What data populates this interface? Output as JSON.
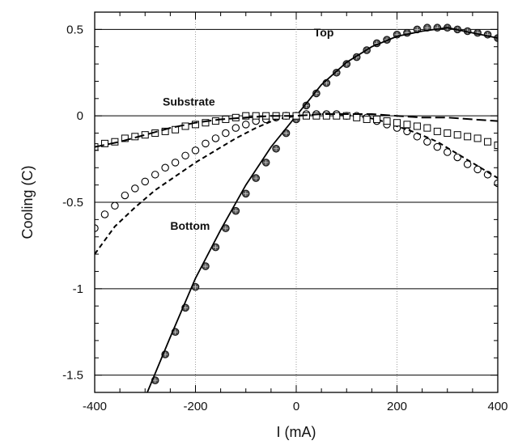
{
  "chart_data": {
    "type": "scatter",
    "title": "",
    "xlabel": "I (mA)",
    "ylabel": "Cooling (C)",
    "xlim": [
      -400,
      400
    ],
    "ylim": [
      -1.6,
      0.6
    ],
    "x_ticks": [
      -400,
      -200,
      0,
      200,
      400
    ],
    "x_tick_labels": [
      "-400",
      "-200",
      "0",
      "200",
      "400"
    ],
    "y_ticks": [
      0.5,
      0,
      -0.5,
      -1,
      -1.5
    ],
    "y_tick_labels": [
      "0.5",
      "0",
      "-0.5",
      "-1",
      "-1.5"
    ],
    "grid": {
      "horizontal_solid_at": [
        0.5,
        0,
        -0.5,
        -1,
        -1.5
      ],
      "vertical_dotted_at": [
        -200,
        0,
        200
      ]
    },
    "annotations": [
      {
        "text": "Top",
        "x": 35,
        "y": 0.46
      },
      {
        "text": "Substrate",
        "x": -265,
        "y": 0.06
      },
      {
        "text": "Bottom",
        "x": -250,
        "y": -0.66
      }
    ],
    "series": [
      {
        "marker": "filled-circle",
        "color": "#444444",
        "points": [
          [
            -280,
            -1.53
          ],
          [
            -260,
            -1.38
          ],
          [
            -240,
            -1.25
          ],
          [
            -220,
            -1.11
          ],
          [
            -200,
            -0.99
          ],
          [
            -180,
            -0.87
          ],
          [
            -160,
            -0.76
          ],
          [
            -140,
            -0.65
          ],
          [
            -120,
            -0.55
          ],
          [
            -100,
            -0.45
          ],
          [
            -80,
            -0.36
          ],
          [
            -60,
            -0.27
          ],
          [
            -40,
            -0.19
          ],
          [
            -20,
            -0.1
          ],
          [
            0,
            -0.02
          ],
          [
            20,
            0.06
          ],
          [
            40,
            0.13
          ],
          [
            60,
            0.19
          ],
          [
            80,
            0.25
          ],
          [
            100,
            0.3
          ],
          [
            120,
            0.34
          ],
          [
            140,
            0.38
          ],
          [
            160,
            0.42
          ],
          [
            180,
            0.44
          ],
          [
            200,
            0.47
          ],
          [
            220,
            0.48
          ],
          [
            240,
            0.5
          ],
          [
            260,
            0.51
          ],
          [
            280,
            0.51
          ],
          [
            300,
            0.51
          ],
          [
            320,
            0.5
          ],
          [
            340,
            0.49
          ],
          [
            360,
            0.48
          ],
          [
            380,
            0.47
          ],
          [
            400,
            0.45
          ]
        ]
      },
      {
        "marker": "solid-line",
        "color": "#000000",
        "points": [
          [
            -300,
            -1.63
          ],
          [
            -250,
            -1.28
          ],
          [
            -200,
            -0.94
          ],
          [
            -150,
            -0.66
          ],
          [
            -100,
            -0.4
          ],
          [
            -50,
            -0.18
          ],
          [
            0,
            0.0
          ],
          [
            50,
            0.18
          ],
          [
            100,
            0.31
          ],
          [
            150,
            0.4
          ],
          [
            200,
            0.46
          ],
          [
            250,
            0.49
          ],
          [
            300,
            0.51
          ],
          [
            350,
            0.48
          ],
          [
            400,
            0.45
          ]
        ]
      },
      {
        "marker": "open-circle",
        "color": "#000000",
        "points": [
          [
            -400,
            -0.65
          ],
          [
            -380,
            -0.57
          ],
          [
            -360,
            -0.52
          ],
          [
            -340,
            -0.46
          ],
          [
            -320,
            -0.42
          ],
          [
            -300,
            -0.38
          ],
          [
            -280,
            -0.34
          ],
          [
            -260,
            -0.3
          ],
          [
            -240,
            -0.27
          ],
          [
            -220,
            -0.23
          ],
          [
            -200,
            -0.2
          ],
          [
            -180,
            -0.16
          ],
          [
            -160,
            -0.13
          ],
          [
            -140,
            -0.1
          ],
          [
            -120,
            -0.07
          ],
          [
            -100,
            -0.05
          ],
          [
            -80,
            -0.03
          ],
          [
            -60,
            -0.02
          ],
          [
            -40,
            -0.01
          ],
          [
            -20,
            0.0
          ],
          [
            0,
            0.0
          ],
          [
            20,
            0.01
          ],
          [
            40,
            0.01
          ],
          [
            60,
            0.01
          ],
          [
            80,
            0.01
          ],
          [
            100,
            0.0
          ],
          [
            120,
            0.0
          ],
          [
            140,
            -0.01
          ],
          [
            160,
            -0.03
          ],
          [
            180,
            -0.05
          ],
          [
            200,
            -0.07
          ],
          [
            220,
            -0.09
          ],
          [
            240,
            -0.12
          ],
          [
            260,
            -0.15
          ],
          [
            280,
            -0.18
          ],
          [
            300,
            -0.21
          ],
          [
            320,
            -0.24
          ],
          [
            340,
            -0.28
          ],
          [
            360,
            -0.31
          ],
          [
            380,
            -0.34
          ],
          [
            400,
            -0.39
          ]
        ]
      },
      {
        "marker": "short-dash",
        "color": "#000000",
        "points": [
          [
            -400,
            -0.8
          ],
          [
            -360,
            -0.64
          ],
          [
            -320,
            -0.53
          ],
          [
            -280,
            -0.43
          ],
          [
            -240,
            -0.35
          ],
          [
            -200,
            -0.27
          ],
          [
            -160,
            -0.2
          ],
          [
            -120,
            -0.13
          ],
          [
            -80,
            -0.07
          ],
          [
            -40,
            -0.02
          ],
          [
            0,
            0.0
          ],
          [
            40,
            0.01
          ],
          [
            80,
            0.01
          ],
          [
            120,
            0.0
          ],
          [
            160,
            -0.02
          ],
          [
            200,
            -0.06
          ],
          [
            240,
            -0.1
          ],
          [
            280,
            -0.15
          ],
          [
            320,
            -0.22
          ],
          [
            360,
            -0.29
          ],
          [
            400,
            -0.36
          ]
        ]
      },
      {
        "marker": "open-square",
        "color": "#000000",
        "points": [
          [
            -400,
            -0.18
          ],
          [
            -380,
            -0.16
          ],
          [
            -360,
            -0.15
          ],
          [
            -340,
            -0.13
          ],
          [
            -320,
            -0.12
          ],
          [
            -300,
            -0.11
          ],
          [
            -280,
            -0.1
          ],
          [
            -260,
            -0.09
          ],
          [
            -240,
            -0.08
          ],
          [
            -220,
            -0.06
          ],
          [
            -200,
            -0.05
          ],
          [
            -180,
            -0.04
          ],
          [
            -160,
            -0.03
          ],
          [
            -140,
            -0.02
          ],
          [
            -120,
            -0.01
          ],
          [
            -100,
            0.0
          ],
          [
            -80,
            0.0
          ],
          [
            -60,
            0.0
          ],
          [
            -40,
            0.0
          ],
          [
            -20,
            0.0
          ],
          [
            0,
            0.0
          ],
          [
            20,
            0.0
          ],
          [
            40,
            0.0
          ],
          [
            60,
            0.0
          ],
          [
            80,
            0.0
          ],
          [
            100,
            0.0
          ],
          [
            120,
            -0.01
          ],
          [
            140,
            -0.02
          ],
          [
            160,
            -0.02
          ],
          [
            180,
            -0.03
          ],
          [
            200,
            -0.04
          ],
          [
            220,
            -0.05
          ],
          [
            240,
            -0.06
          ],
          [
            260,
            -0.07
          ],
          [
            280,
            -0.09
          ],
          [
            300,
            -0.1
          ],
          [
            320,
            -0.11
          ],
          [
            340,
            -0.12
          ],
          [
            360,
            -0.13
          ],
          [
            380,
            -0.15
          ],
          [
            400,
            -0.17
          ]
        ]
      },
      {
        "marker": "long-dash",
        "color": "#000000",
        "points": [
          [
            -400,
            -0.18
          ],
          [
            -350,
            -0.15
          ],
          [
            -300,
            -0.11
          ],
          [
            -250,
            -0.07
          ],
          [
            -200,
            -0.04
          ],
          [
            -150,
            -0.02
          ],
          [
            -100,
            -0.01
          ],
          [
            -50,
            0.0
          ],
          [
            0,
            0.0
          ],
          [
            50,
            0.01
          ],
          [
            100,
            0.01
          ],
          [
            150,
            0.01
          ],
          [
            200,
            0.0
          ],
          [
            250,
            -0.01
          ],
          [
            300,
            -0.01
          ],
          [
            350,
            -0.02
          ],
          [
            400,
            -0.03
          ]
        ]
      }
    ]
  }
}
